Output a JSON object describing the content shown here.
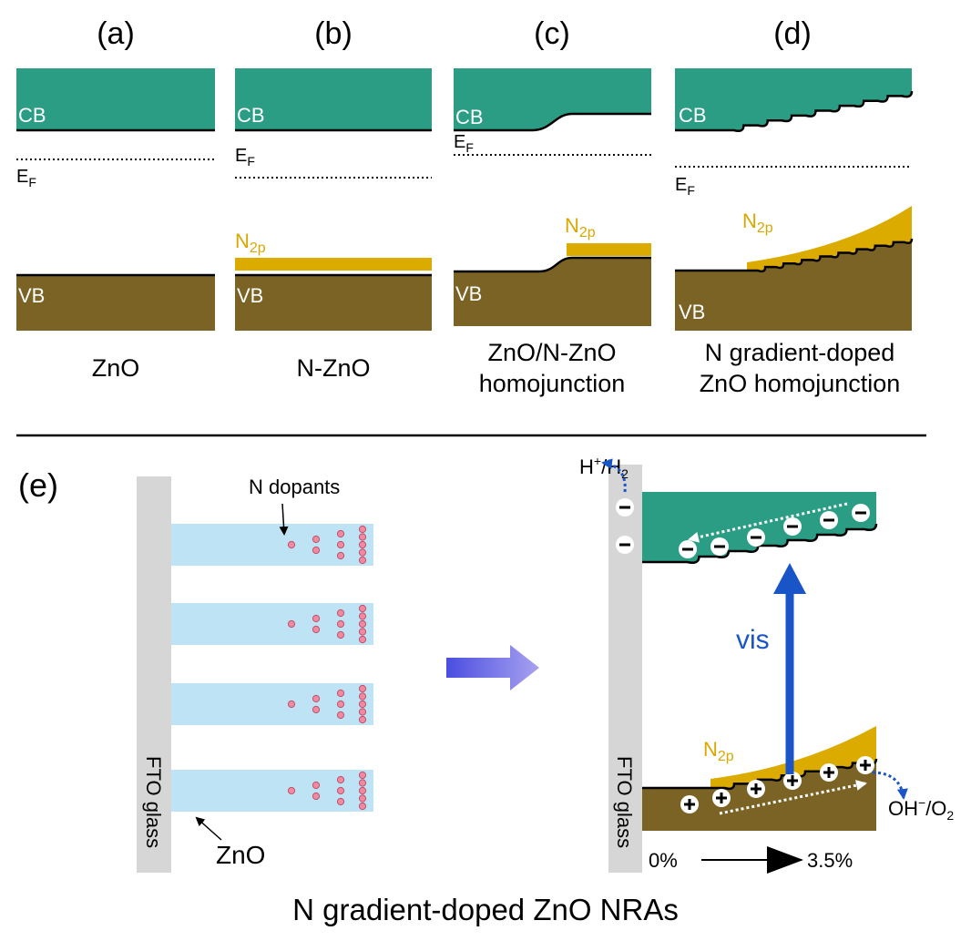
{
  "panels": [
    {
      "label": "(a)",
      "cb": "CB",
      "vb": "VB",
      "fermi": {
        "symbol": "E",
        "subscript": "F"
      },
      "caption": [
        "ZnO"
      ]
    },
    {
      "label": "(b)",
      "cb": "CB",
      "vb": "VB",
      "fermi": {
        "symbol": "E",
        "subscript": "F"
      },
      "n2p": {
        "symbol": "N",
        "subscript": "2p"
      },
      "caption": [
        "N-ZnO"
      ]
    },
    {
      "label": "(c)",
      "cb": "CB",
      "vb": "VB",
      "fermi": {
        "symbol": "E",
        "subscript": "F"
      },
      "n2p": {
        "symbol": "N",
        "subscript": "2p"
      },
      "caption": [
        "ZnO/N-ZnO",
        "homojunction"
      ]
    },
    {
      "label": "(d)",
      "cb": "CB",
      "vb": "VB",
      "fermi": {
        "symbol": "E",
        "subscript": "F"
      },
      "n2p": {
        "symbol": "N",
        "subscript": "2p"
      },
      "caption": [
        "N gradient-doped",
        "ZnO homojunction"
      ]
    }
  ],
  "panel_e": {
    "label": "(e)",
    "n_dopants": "N dopants",
    "zno": "ZnO",
    "fto_glass_left": "FTO glass",
    "fto_glass_right": "FTO glass",
    "h_couple": {
      "symbol": "H",
      "charge": "+",
      "slash": "/H",
      "subscript": "2"
    },
    "oh_couple": {
      "symbol": "OH",
      "charge": "−",
      "slash": "/O",
      "subscript": "2"
    },
    "n2p": {
      "symbol": "N",
      "subscript": "2p"
    },
    "vis": "vis",
    "gradient_start": "0%",
    "gradient_end": "3.5%",
    "caption": "N gradient-doped ZnO NRAs"
  }
}
